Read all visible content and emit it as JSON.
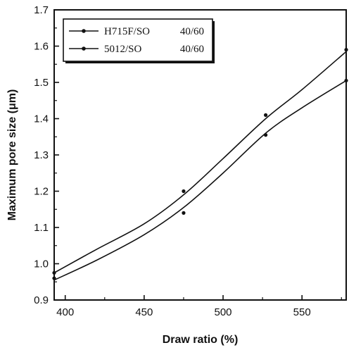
{
  "chart_data": {
    "type": "line",
    "title": "",
    "xlabel": "Draw ratio (%)",
    "ylabel": "Maximum pore size (μm)",
    "xlim": [
      393,
      578
    ],
    "ylim": [
      0.9,
      1.7
    ],
    "x_ticks": [
      "400",
      "450",
      "500",
      "550"
    ],
    "x_tick_values": [
      400,
      450,
      500,
      550
    ],
    "y_ticks": [
      "0.9",
      "1.0",
      "1.1",
      "1.2",
      "1.3",
      "1.4",
      "1.5",
      "1.6",
      "1.7"
    ],
    "y_tick_values": [
      0.9,
      1.0,
      1.1,
      1.2,
      1.3,
      1.4,
      1.5,
      1.6,
      1.7
    ],
    "grid": false,
    "legend_position": "top-left",
    "series": [
      {
        "name": "H715F/SO",
        "ratio": "40/60",
        "x": [
          393,
          475,
          527,
          578
        ],
        "y": [
          0.975,
          1.2,
          1.41,
          1.59
        ],
        "curve_x": [
          393,
          420,
          450,
          475,
          500,
          527,
          550,
          578
        ],
        "curve_y": [
          0.975,
          1.04,
          1.11,
          1.19,
          1.29,
          1.4,
          1.48,
          1.585
        ]
      },
      {
        "name": "5012/SO",
        "ratio": "40/60",
        "x": [
          393,
          475,
          527,
          578
        ],
        "y": [
          0.96,
          1.14,
          1.355,
          1.505
        ],
        "curve_x": [
          393,
          420,
          450,
          475,
          500,
          527,
          550,
          578
        ],
        "curve_y": [
          0.955,
          1.01,
          1.08,
          1.155,
          1.25,
          1.36,
          1.43,
          1.505
        ]
      }
    ]
  }
}
